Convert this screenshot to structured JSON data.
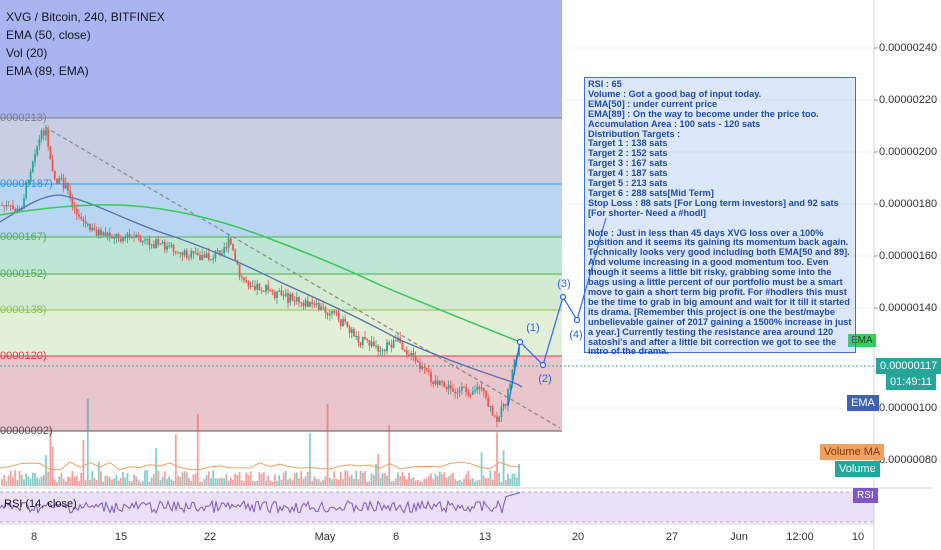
{
  "header": {
    "symbol_line": "XVG / Bitcoin, 240, BITFINEX",
    "indicators": [
      "EMA (50, close)",
      "Vol (20)",
      "EMA (89, EMA)"
    ]
  },
  "price_axis": {
    "ticks": [
      "0.00000240",
      "0.00000220",
      "0.00000200",
      "0.00000180",
      "0.00000160",
      "0.00000140",
      "0.00000100",
      "0.00000080"
    ],
    "current_price": "0.00000117",
    "countdown": "01:49:11",
    "price_color": "#26a69a"
  },
  "fib_levels": [
    {
      "label": "0000213)",
      "color": "#787b86"
    },
    {
      "label": "00000187)",
      "color": "#2196f3"
    },
    {
      "label": "0000167)",
      "color": "#4caf50"
    },
    {
      "label": "0000152)",
      "color": "#4caf50"
    },
    {
      "label": "0000138)",
      "color": "#8bc34a"
    },
    {
      "label": "0000120)",
      "color": "#f23645"
    },
    {
      "label": "00000092)",
      "color": "#555555"
    }
  ],
  "tags": {
    "ema_top": "EMA",
    "ema": "EMA",
    "volume_ma": "Volume MA",
    "volume": "Volume",
    "rsi": "RSI"
  },
  "rsi_label": "RSI (14, close)",
  "x_axis": [
    "8",
    "15",
    "22",
    "May",
    "6",
    "13",
    "20",
    "27",
    "Jun",
    "12:00",
    "10"
  ],
  "waves": [
    "(1)",
    "(2)",
    "(3)",
    "(4)"
  ],
  "note_lines": [
    "RSI : 65",
    "Volume : Got a good bag of input today.",
    "EMA[50] : under current price",
    "EMA[89] : On the way to become under the price too.",
    "Accumulation Area : 100 sats - 120 sats",
    "Distribution Targets :",
    "Target 1 : 138 sats",
    "Target 2 : 152 sats",
    "Target 3 : 167 sats",
    "Target 4 : 187 sats",
    "Target 5 : 213 sats",
    "Target 6 : 288 sats[Mid Term]",
    "Stop Loss : 88 sats [For Long term investors] and 92 sats [For shorter- Need a #hodl]",
    "",
    "Note : Just in less than 45 days XVG loss over a 100% position and it seems its gaining its momentum back again. Technically looks very good including both EMA[50 and 89]. And volume increasing in a good momentum too. Even though it seems a little bit risky, grabbing some into the bags using a little percent of our portfolio must be a smart move to gain a short term big profit. For #hodlers this must be the time to grab in big amount and wait for it till it started its drama. [Remember this project is one the best/maybe unbelievable gainer of 2017 gaining a 1500% increase in just a year.] Currently testing the resistance area around 120 satoshi's and after a little bit correction we got to see the intro of the drama."
  ]
}
